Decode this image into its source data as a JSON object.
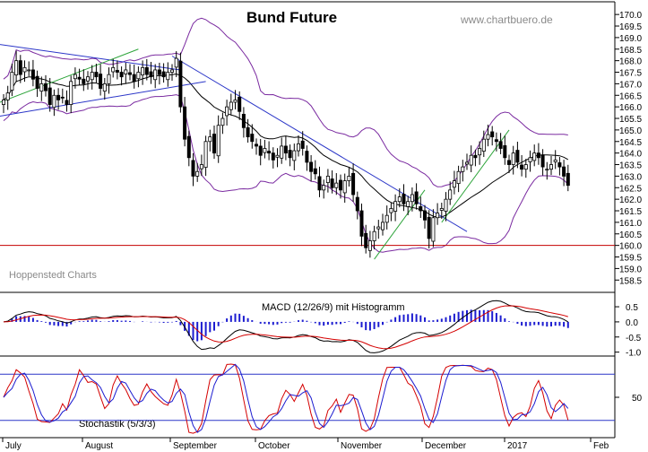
{
  "chart_data": [
    {
      "type": "candlestick",
      "title": "Bund Future",
      "watermark": "www.chartbuero.de",
      "source_label": "Hoppenstedt Charts",
      "ylim": [
        158.2,
        170.2
      ],
      "y_ticks": [
        "170.0",
        "169.5",
        "169.0",
        "168.5",
        "168.0",
        "167.5",
        "167.0",
        "166.5",
        "166.0",
        "165.5",
        "165.0",
        "164.5",
        "164.0",
        "163.5",
        "163.0",
        "162.5",
        "162.0",
        "161.5",
        "161.0",
        "160.5",
        "160.0",
        "159.5",
        "159.0",
        "158.5"
      ],
      "x_labels": [
        "July",
        "August",
        "September",
        "October",
        "November",
        "December",
        "2017",
        "Feb"
      ],
      "closes": [
        166.3,
        166.6,
        167.5,
        168.0,
        167.4,
        167.7,
        167.6,
        167.2,
        166.8,
        167.0,
        166.7,
        166.1,
        166.5,
        166.3,
        166.4,
        166.1,
        167.1,
        167.4,
        167.2,
        167.0,
        167.3,
        167.5,
        167.3,
        166.8,
        167.0,
        167.4,
        167.7,
        167.5,
        167.3,
        167.6,
        167.4,
        167.1,
        167.5,
        167.7,
        167.4,
        167.3,
        167.6,
        167.4,
        167.3,
        167.5,
        167.6,
        168.1,
        166.0,
        164.6,
        163.8,
        163.0,
        163.2,
        163.5,
        164.5,
        164.7,
        164.0,
        165.2,
        165.5,
        166.0,
        166.2,
        166.3,
        165.8,
        165.1,
        164.7,
        164.5,
        164.3,
        163.9,
        164.2,
        164.0,
        163.7,
        163.9,
        164.3,
        164.0,
        163.8,
        164.1,
        164.4,
        164.2,
        163.6,
        163.2,
        163.1,
        162.4,
        162.6,
        163.0,
        162.5,
        162.7,
        162.4,
        162.8,
        163.0,
        162.2,
        161.5,
        160.4,
        159.9,
        160.2,
        160.6,
        160.8,
        161.0,
        161.3,
        161.6,
        161.9,
        162.1,
        161.8,
        161.9,
        162.2,
        161.8,
        161.5,
        161.1,
        160.3,
        161.2,
        161.4,
        161.6,
        162.0,
        162.4,
        162.8,
        163.2,
        163.4,
        163.6,
        163.9,
        163.8,
        164.2,
        164.6,
        164.8,
        164.7,
        164.5,
        164.2,
        163.8,
        163.5,
        164.0,
        163.6,
        163.3,
        163.5,
        163.8,
        164.0,
        163.8,
        163.4,
        163.3,
        163.5,
        163.7,
        163.4,
        163.0,
        162.6
      ],
      "overlays": {
        "bollinger_bands": true,
        "horizontal_line": 160.0,
        "trendlines": true
      }
    },
    {
      "type": "line",
      "title": "MACD (12/26/9) mit Histogramm",
      "ylim": [
        -1.0,
        0.5
      ],
      "y_ticks": [
        "0.5",
        "0.0",
        "-0.5",
        "-1.0"
      ]
    },
    {
      "type": "line",
      "title": "Stochastik (5/3/3)",
      "y_ticks": [
        "50"
      ],
      "reference_levels": [
        80,
        20
      ]
    }
  ],
  "colors": {
    "price": "#000000",
    "bands": "#7a2aa0",
    "trend_down": "#2b36c8",
    "trend_up": "#2da43a",
    "support": "#c40000",
    "macd_line": "#000000",
    "signal_line": "#d40000",
    "histogram": "#1c1cd0",
    "stoch_k": "#d40000",
    "stoch_d": "#1c1cd0",
    "stoch_levels": "#2b36c8"
  }
}
